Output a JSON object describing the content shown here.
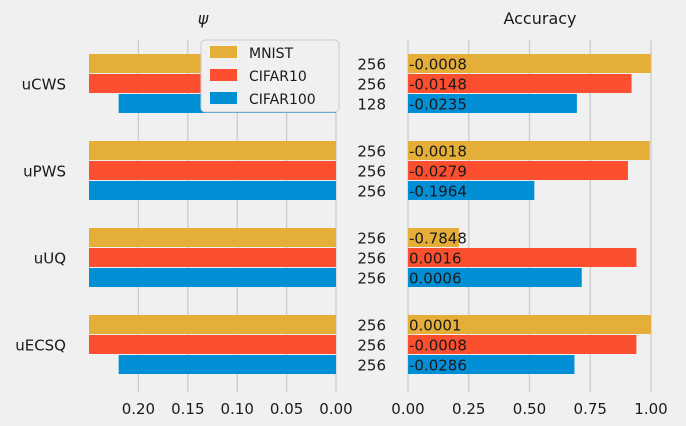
{
  "chart_data": {
    "type": "bar",
    "orientation": "horizontal",
    "categories": [
      "uCWS",
      "uPWS",
      "uUQ",
      "uECSQ"
    ],
    "series": [
      {
        "name": "MNIST",
        "color": "#e5ae38"
      },
      {
        "name": "CIFAR10",
        "color": "#fc4f30"
      },
      {
        "name": "CIFAR100",
        "color": "#008fd5"
      }
    ],
    "legend": {
      "position": "top-center"
    },
    "grid": true,
    "left_panel": {
      "title": "ψ",
      "xlim": [
        0.25,
        0.0
      ],
      "xticks": [
        "0.20",
        "0.15",
        "0.10",
        "0.05",
        "0.00"
      ],
      "values": [
        [
          0.25,
          0.25,
          0.22
        ],
        [
          0.25,
          0.25,
          0.25
        ],
        [
          0.25,
          0.25,
          0.25
        ],
        [
          0.25,
          0.25,
          0.22
        ]
      ]
    },
    "middle_labels": [
      [
        "256",
        "256",
        "128"
      ],
      [
        "256",
        "256",
        "256"
      ],
      [
        "256",
        "256",
        "256"
      ],
      [
        "256",
        "256",
        "256"
      ]
    ],
    "right_panel": {
      "title": "Accuracy",
      "xlim": [
        0.0,
        1.0
      ],
      "xticks": [
        "0.00",
        "0.25",
        "0.50",
        "0.75",
        "1.00"
      ],
      "values": [
        [
          0.9992,
          0.92,
          0.695
        ],
        [
          0.995,
          0.905,
          0.52
        ],
        [
          0.21,
          0.94,
          0.715
        ],
        [
          1.0,
          0.94,
          0.685
        ]
      ],
      "labels": [
        [
          "-0.0008",
          "-0.0148",
          "-0.0235"
        ],
        [
          "-0.0018",
          "-0.0279",
          "-0.1964"
        ],
        [
          "-0.7848",
          "0.0016",
          "0.0006"
        ],
        [
          "0.0001",
          "-0.0008",
          "-0.0286"
        ]
      ]
    }
  }
}
